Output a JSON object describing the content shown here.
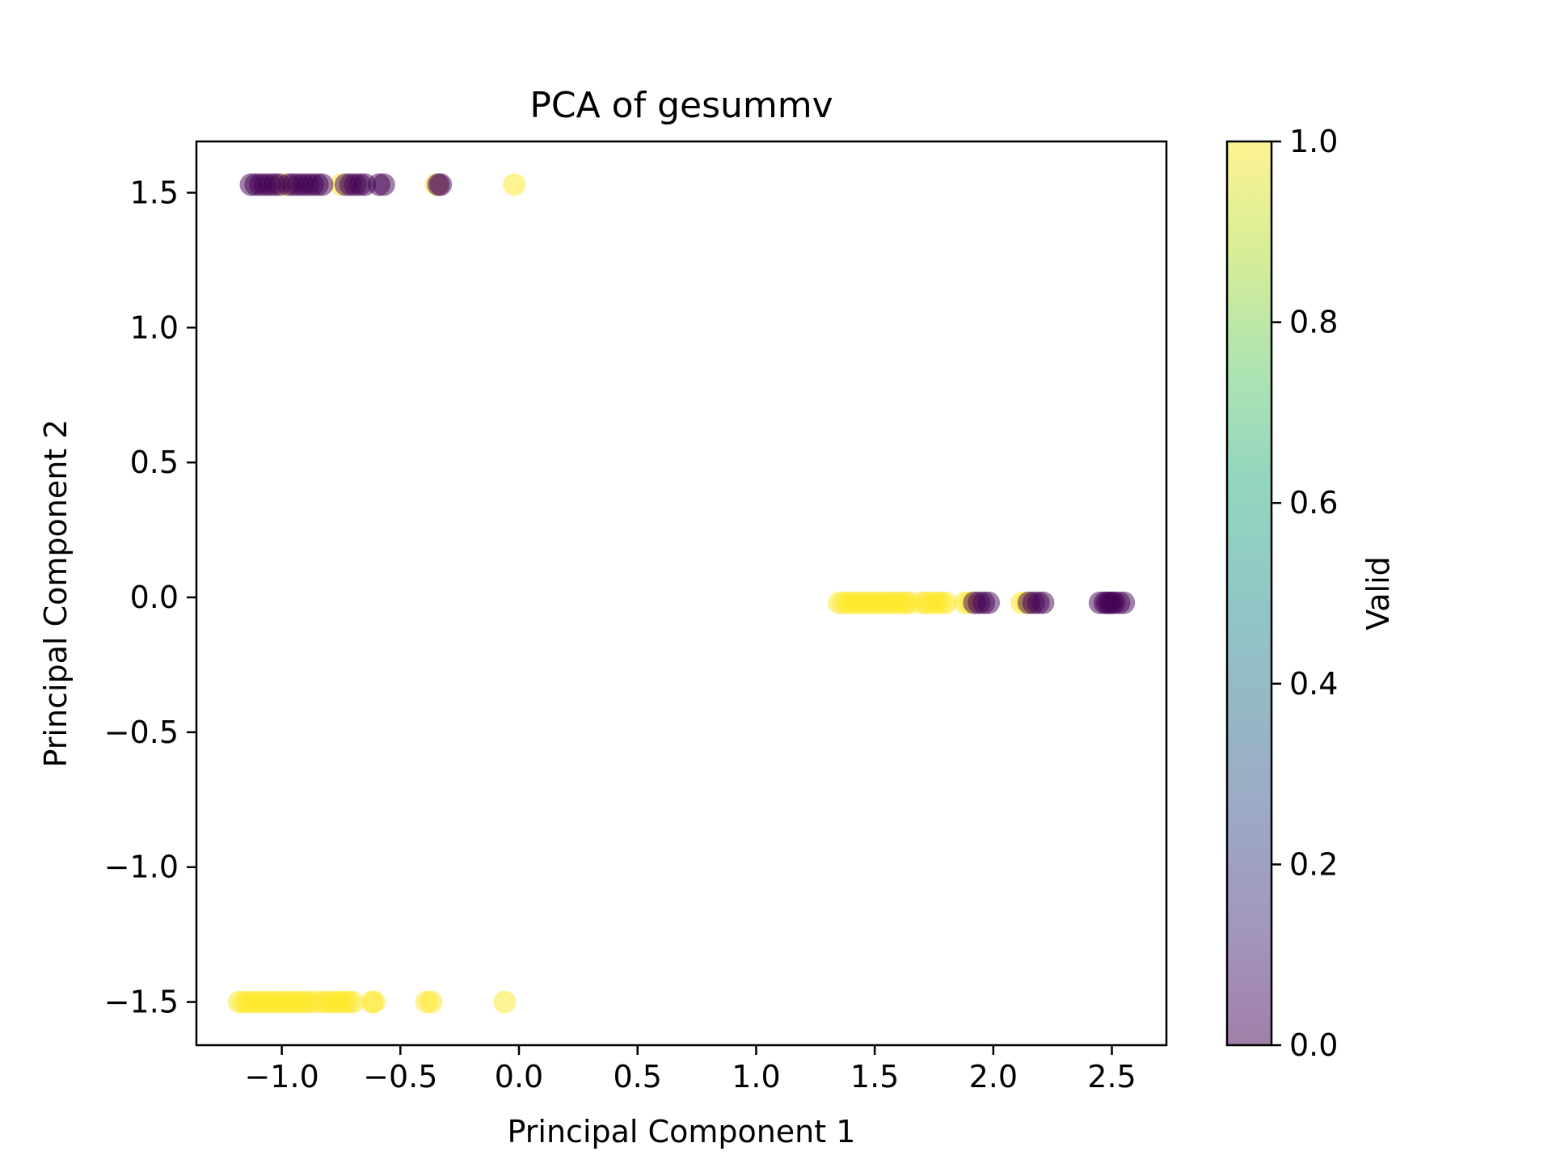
{
  "chart_data": {
    "type": "scatter",
    "title": "PCA of gesummv",
    "xlabel": "Principal Component 1",
    "ylabel": "Principal Component 2",
    "xlim": [
      -1.36,
      2.73
    ],
    "ylim": [
      -1.66,
      1.69
    ],
    "xticks": [
      -1.0,
      -0.5,
      0.0,
      0.5,
      1.0,
      1.5,
      2.0,
      2.5
    ],
    "yticks": [
      -1.5,
      -1.0,
      -0.5,
      0.0,
      0.5,
      1.0,
      1.5
    ],
    "x_tick_labels": [
      "−1.0",
      "−0.5",
      "0.0",
      "0.5",
      "1.0",
      "1.5",
      "2.0",
      "2.5"
    ],
    "y_tick_labels": [
      "−1.5",
      "−1.0",
      "−0.5",
      "0.0",
      "0.5",
      "1.0",
      "1.5"
    ],
    "grid": false,
    "point_alpha": 0.5,
    "colorbar": {
      "label": "Valid",
      "range": [
        0.0,
        1.0
      ],
      "ticks": [
        0.0,
        0.2,
        0.4,
        0.6,
        0.8,
        1.0
      ],
      "tick_labels": [
        "0.0",
        "0.2",
        "0.4",
        "0.6",
        "0.8",
        "1.0"
      ],
      "colormap": "viridis",
      "color_low": "#440154",
      "color_high": "#fde725"
    },
    "series": [
      {
        "valid": 1,
        "points": [
          [
            -1.18,
            -1.5
          ],
          [
            -1.16,
            -1.5
          ],
          [
            -1.14,
            -1.5
          ],
          [
            -1.12,
            -1.5
          ],
          [
            -1.1,
            -1.5
          ],
          [
            -1.08,
            -1.5
          ],
          [
            -1.06,
            -1.5
          ],
          [
            -1.04,
            -1.5
          ],
          [
            -1.02,
            -1.5
          ],
          [
            -1.0,
            -1.5
          ],
          [
            -0.98,
            -1.5
          ],
          [
            -0.96,
            -1.5
          ],
          [
            -0.94,
            -1.5
          ],
          [
            -0.92,
            -1.5
          ],
          [
            -0.9,
            -1.5
          ],
          [
            -0.88,
            -1.5
          ],
          [
            -0.85,
            -1.5
          ],
          [
            -0.82,
            -1.5
          ],
          [
            -0.8,
            -1.5
          ],
          [
            -0.78,
            -1.5
          ],
          [
            -0.76,
            -1.5
          ],
          [
            -0.74,
            -1.5
          ],
          [
            -0.72,
            -1.5
          ],
          [
            -0.7,
            -1.5
          ],
          [
            -0.62,
            -1.5
          ],
          [
            -0.61,
            -1.5
          ],
          [
            -0.39,
            -1.5
          ],
          [
            -0.37,
            -1.5
          ],
          [
            -0.06,
            -1.5
          ],
          [
            -0.02,
            1.53
          ],
          [
            -0.99,
            1.53
          ],
          [
            -0.75,
            1.53
          ],
          [
            -0.35,
            1.53
          ],
          [
            1.35,
            -0.02
          ],
          [
            1.37,
            -0.02
          ],
          [
            1.39,
            -0.02
          ],
          [
            1.41,
            -0.02
          ],
          [
            1.43,
            -0.02
          ],
          [
            1.45,
            -0.02
          ],
          [
            1.47,
            -0.02
          ],
          [
            1.49,
            -0.02
          ],
          [
            1.51,
            -0.02
          ],
          [
            1.53,
            -0.02
          ],
          [
            1.55,
            -0.02
          ],
          [
            1.57,
            -0.02
          ],
          [
            1.59,
            -0.02
          ],
          [
            1.61,
            -0.02
          ],
          [
            1.63,
            -0.02
          ],
          [
            1.65,
            -0.02
          ],
          [
            1.7,
            -0.02
          ],
          [
            1.72,
            -0.02
          ],
          [
            1.74,
            -0.02
          ],
          [
            1.76,
            -0.02
          ],
          [
            1.78,
            -0.02
          ],
          [
            1.8,
            -0.02
          ],
          [
            1.88,
            -0.02
          ],
          [
            1.9,
            -0.02
          ],
          [
            2.12,
            -0.02
          ],
          [
            2.14,
            -0.02
          ]
        ]
      },
      {
        "valid": 0,
        "points": [
          [
            -1.13,
            1.53
          ],
          [
            -1.11,
            1.53
          ],
          [
            -1.09,
            1.53
          ],
          [
            -1.07,
            1.53
          ],
          [
            -1.05,
            1.53
          ],
          [
            -1.03,
            1.53
          ],
          [
            -1.01,
            1.53
          ],
          [
            -0.97,
            1.53
          ],
          [
            -0.95,
            1.53
          ],
          [
            -0.93,
            1.53
          ],
          [
            -0.91,
            1.53
          ],
          [
            -0.89,
            1.53
          ],
          [
            -0.87,
            1.53
          ],
          [
            -0.85,
            1.53
          ],
          [
            -0.83,
            1.53
          ],
          [
            -0.73,
            1.53
          ],
          [
            -0.71,
            1.53
          ],
          [
            -0.69,
            1.53
          ],
          [
            -0.67,
            1.53
          ],
          [
            -0.65,
            1.53
          ],
          [
            -0.59,
            1.53
          ],
          [
            -0.57,
            1.53
          ],
          [
            -0.34,
            1.53
          ],
          [
            -0.33,
            1.53
          ],
          [
            1.92,
            -0.02
          ],
          [
            1.94,
            -0.02
          ],
          [
            1.96,
            -0.02
          ],
          [
            1.98,
            -0.02
          ],
          [
            2.15,
            -0.02
          ],
          [
            2.17,
            -0.02
          ],
          [
            2.19,
            -0.02
          ],
          [
            2.21,
            -0.02
          ],
          [
            2.45,
            -0.02
          ],
          [
            2.47,
            -0.02
          ],
          [
            2.48,
            -0.02
          ],
          [
            2.49,
            -0.02
          ],
          [
            2.5,
            -0.02
          ],
          [
            2.51,
            -0.02
          ],
          [
            2.53,
            -0.02
          ],
          [
            2.55,
            -0.02
          ]
        ]
      }
    ]
  }
}
